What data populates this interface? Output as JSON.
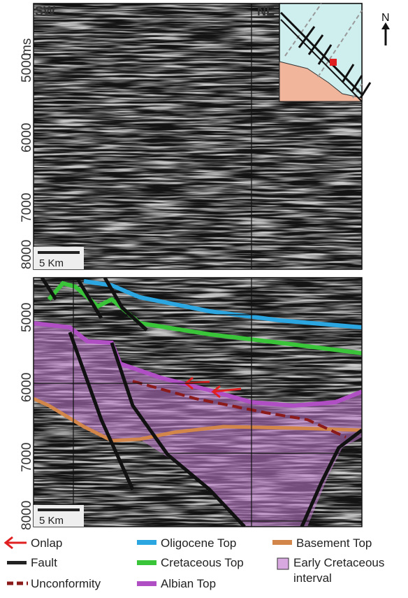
{
  "panels": [
    {
      "left_label": "SW",
      "right_label": "NE",
      "unit": "ms",
      "depth_labels": [
        "5000",
        "6000",
        "7000",
        "8000"
      ],
      "scale_bar": "5 Km",
      "inset_north": "N"
    },
    {
      "depth_labels": [
        "5000",
        "6000",
        "7000",
        "8000"
      ],
      "scale_bar": "5 Km"
    }
  ],
  "legend": [
    {
      "label": "Onlap"
    },
    {
      "label": "Oligocene Top"
    },
    {
      "label": "Basement Top"
    },
    {
      "label": "Fault"
    },
    {
      "label": "Cretaceous Top"
    },
    {
      "label": "Early Cretaceous",
      "label2": "interval"
    },
    {
      "label": "Unconformity"
    },
    {
      "label": "Albian Top"
    }
  ]
}
